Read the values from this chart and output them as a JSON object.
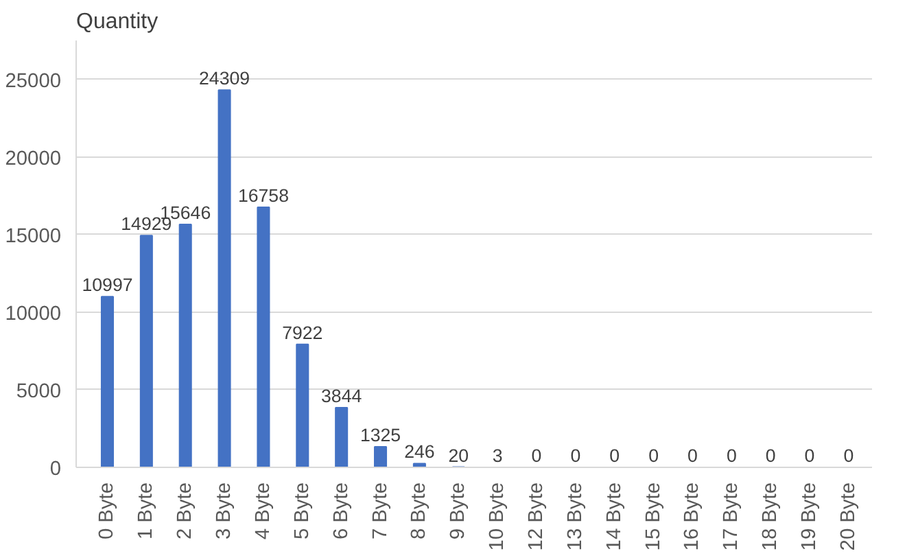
{
  "chart_data": {
    "type": "bar",
    "ylabel": "Quantity",
    "categories": [
      "0 Byte",
      "1 Byte",
      "2 Byte",
      "3 Byte",
      "4 Byte",
      "5 Byte",
      "6 Byte",
      "7 Byte",
      "8 Byte",
      "9 Byte",
      "10 Byte",
      "12 Byte",
      "13 Byte",
      "14 Byte",
      "15 Byte",
      "16 Byte",
      "17 Byte",
      "18 Byte",
      "19 Byte",
      "20 Byte"
    ],
    "values": [
      10997,
      14929,
      15646,
      24309,
      16758,
      7922,
      3844,
      1325,
      246,
      20,
      3,
      0,
      0,
      0,
      0,
      0,
      0,
      0,
      0,
      0
    ],
    "color": "#4472c4",
    "ylim": [
      0,
      27500
    ],
    "yticks": [
      0,
      5000,
      10000,
      15000,
      20000,
      25000
    ],
    "grid": "y",
    "data_labels": true
  }
}
